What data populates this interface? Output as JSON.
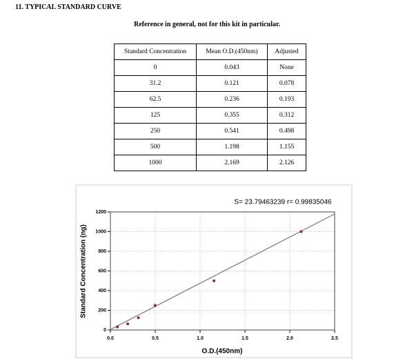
{
  "header": {
    "title": "11. TYPICAL STANDARD CURVE"
  },
  "caption": "Reference in general, not for this kit in particular.",
  "table": {
    "columns": [
      "Standard Concentration",
      "Mean O.D.(450nm)",
      "Adjusted"
    ],
    "rows": [
      [
        "0",
        "0.043",
        "None"
      ],
      [
        "31.2",
        "0.121",
        "0.078"
      ],
      [
        "62.5",
        "0.236",
        "0.193"
      ],
      [
        "125",
        "0.355",
        "0.312"
      ],
      [
        "250",
        "0.541",
        "0.498"
      ],
      [
        "500",
        "1.198",
        "1.155"
      ],
      [
        "1000",
        "2.169",
        "2.126"
      ]
    ]
  },
  "chart_data": {
    "type": "scatter",
    "annotation": "S= 23.79463239  r= 0.99835046",
    "xlabel": "O.D.(450nm)",
    "ylabel": "Standard Concentration (ng)",
    "x": [
      0.078,
      0.193,
      0.312,
      0.498,
      1.155,
      2.126
    ],
    "values": [
      31.2,
      62.5,
      125,
      250,
      500,
      1000
    ],
    "color": "#8b2a2a",
    "fit_line": {
      "x": [
        0,
        2.5
      ],
      "values": [
        5,
        1180
      ],
      "color": "#777777"
    },
    "xlim": [
      0,
      2.5
    ],
    "ylim": [
      0,
      1200
    ],
    "xticks": [
      {
        "value": 0,
        "label": "0.0"
      },
      0.5,
      {
        "value": 1,
        "label": "1.0"
      },
      1.5,
      {
        "value": 2,
        "label": "2.0"
      },
      2.5
    ],
    "yticks": [
      0,
      200,
      400,
      600,
      800,
      1000,
      1200
    ],
    "grid": true
  }
}
